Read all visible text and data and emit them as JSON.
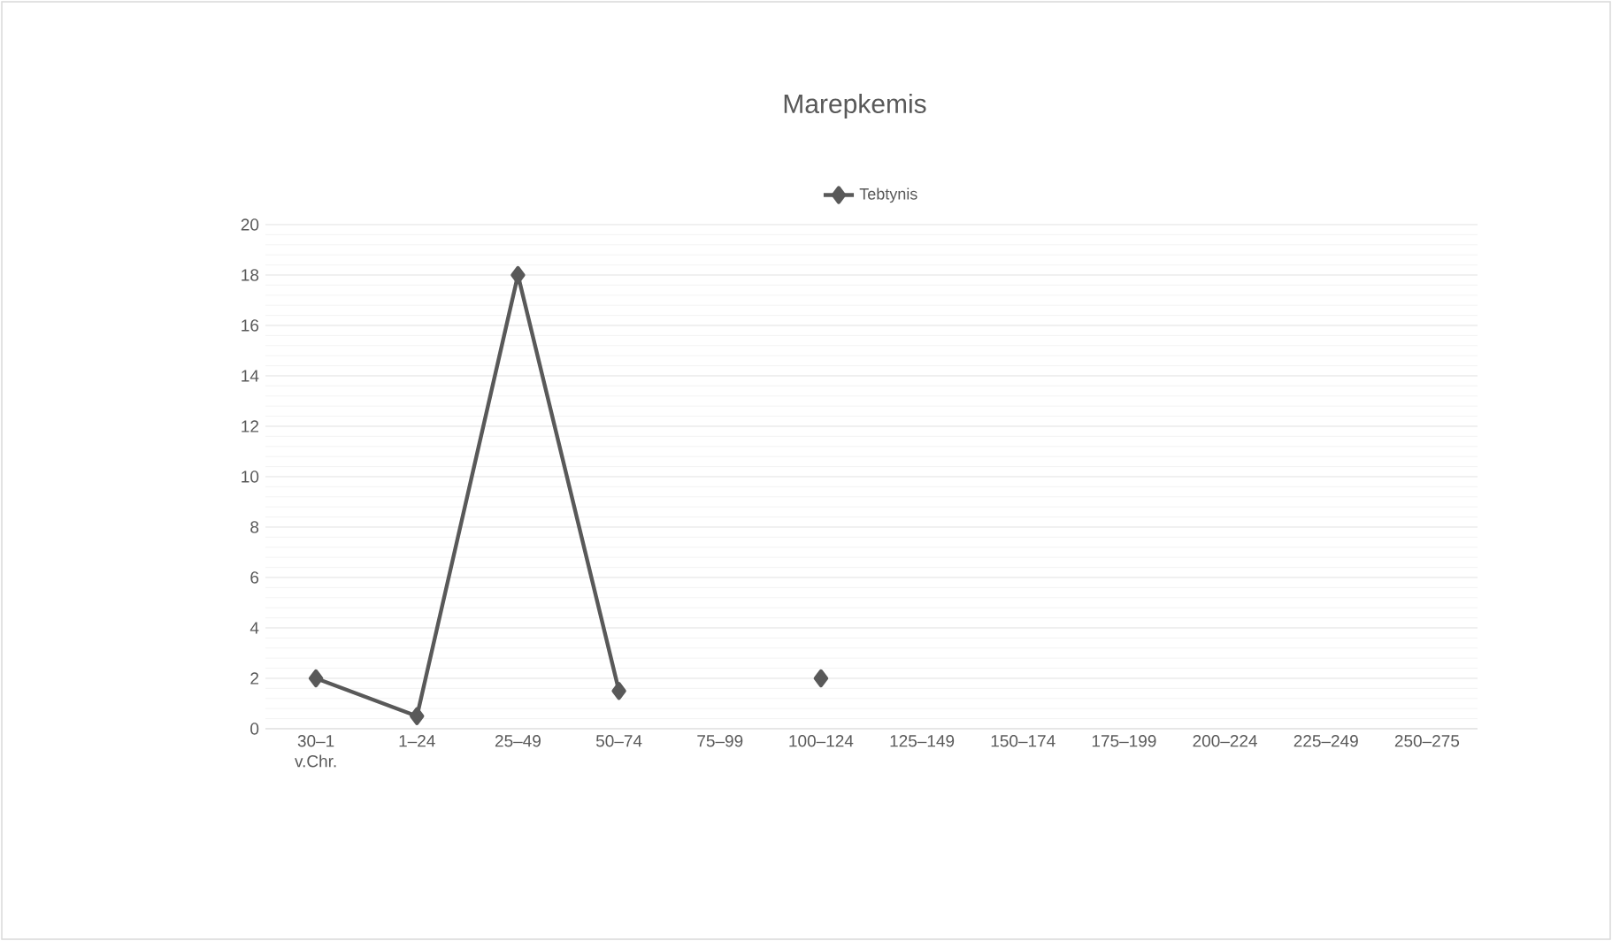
{
  "chart_data": {
    "type": "line",
    "title": "Marepkemis",
    "categories": [
      "30–1 v.Chr.",
      "1–24",
      "25–49",
      "50–74",
      "75–99",
      "100–124",
      "125–149",
      "150–174",
      "175–199",
      "200–224",
      "225–249",
      "250–275"
    ],
    "series": [
      {
        "name": "Tebtynis",
        "color": "#595959",
        "values": [
          2,
          0.5,
          18,
          1.5,
          null,
          2,
          null,
          null,
          null,
          null,
          null,
          null
        ]
      }
    ],
    "ylim": [
      0,
      20
    ],
    "yticks": [
      0,
      2,
      4,
      6,
      8,
      10,
      12,
      14,
      16,
      18,
      20
    ],
    "grid": "y",
    "legend": "top",
    "marker": "diamond",
    "line_style": "solid"
  }
}
